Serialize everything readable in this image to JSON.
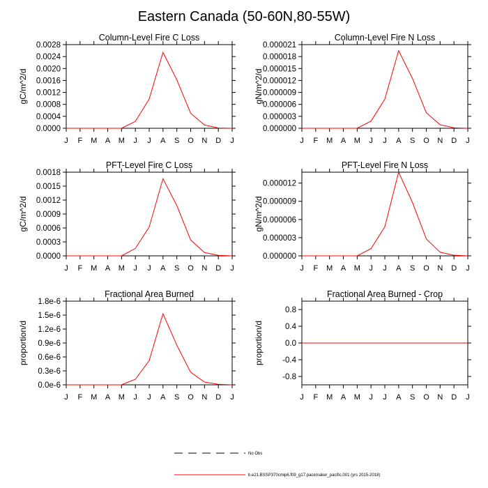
{
  "title": "Eastern Canada (50-60N,80-55W)",
  "colors": {
    "series": "#ff0000",
    "axis": "#000000"
  },
  "legend": {
    "entries": [
      {
        "label": "No Obs",
        "style": "dashed",
        "color": "#000000"
      },
      {
        "label": "b.e21.BSSP370cmip6.f09_g17.pacemaker_pacific.001 (yrs 2015-2018)",
        "style": "solid",
        "color": "#ff0000"
      }
    ]
  },
  "chart_data": [
    {
      "type": "line",
      "title": "Column-Level Fire C Loss",
      "xlabel": "",
      "ylabel": "gC/m^2/d",
      "categories": [
        "J",
        "F",
        "M",
        "A",
        "M",
        "J",
        "J",
        "A",
        "S",
        "O",
        "N",
        "D",
        "J"
      ],
      "ylim": [
        0,
        0.0028
      ],
      "yticks": [
        "0.0000",
        "0.0004",
        "0.0008",
        "0.0012",
        "0.0016",
        "0.0020",
        "0.0024",
        "0.0028"
      ],
      "series": [
        {
          "name": "b.e21.BSSP370cmip6.f09_g17.pacemaker_pacific.001 (yrs 2015-2018)",
          "values": [
            0,
            0,
            0,
            0,
            0,
            0.00023,
            0.00098,
            0.00254,
            0.00162,
            0.0005,
            0.00011,
            1e-05,
            0
          ]
        }
      ]
    },
    {
      "type": "line",
      "title": "Column-Level Fire N Loss",
      "xlabel": "",
      "ylabel": "gN/m^2/d",
      "categories": [
        "J",
        "F",
        "M",
        "A",
        "M",
        "J",
        "J",
        "A",
        "S",
        "O",
        "N",
        "D",
        "J"
      ],
      "ylim": [
        0,
        2.1e-05
      ],
      "yticks": [
        "0.000000",
        "0.000003",
        "0.000006",
        "0.000009",
        "0.000012",
        "0.000015",
        "0.000018",
        "0.000021"
      ],
      "series": [
        {
          "name": "b.e21.BSSP370cmip6.f09_g17.pacemaker_pacific.001 (yrs 2015-2018)",
          "values": [
            0,
            0,
            0,
            0,
            0,
            1.8e-06,
            7.3e-06,
            1.95e-05,
            1.25e-05,
            3.9e-06,
            9e-07,
            1e-07,
            0
          ]
        }
      ]
    },
    {
      "type": "line",
      "title": "PFT-Level Fire C Loss",
      "xlabel": "",
      "ylabel": "gC/m^2/d",
      "categories": [
        "J",
        "F",
        "M",
        "A",
        "M",
        "J",
        "J",
        "A",
        "S",
        "O",
        "N",
        "D",
        "J"
      ],
      "ylim": [
        0,
        0.0018
      ],
      "yticks": [
        "0.0000",
        "0.0003",
        "0.0006",
        "0.0009",
        "0.0012",
        "0.0015",
        "0.0018"
      ],
      "series": [
        {
          "name": "b.e21.BSSP370cmip6.f09_g17.pacemaker_pacific.001 (yrs 2015-2018)",
          "values": [
            0,
            0,
            0,
            0,
            0,
            0.00016,
            0.00062,
            0.00166,
            0.00108,
            0.00034,
            7e-05,
            1e-05,
            0
          ]
        }
      ]
    },
    {
      "type": "line",
      "title": "PFT-Level Fire N Loss",
      "xlabel": "",
      "ylabel": "gN/m^2/d",
      "categories": [
        "J",
        "F",
        "M",
        "A",
        "M",
        "J",
        "J",
        "A",
        "S",
        "O",
        "N",
        "D",
        "J"
      ],
      "ylim": [
        0,
        1.38e-05
      ],
      "yticks": [
        "0.000000",
        "0.000003",
        "0.000006",
        "0.000009",
        "0.000012"
      ],
      "ytickvalues": [
        0,
        3e-06,
        6e-06,
        9e-06,
        1.2e-05
      ],
      "series": [
        {
          "name": "b.e21.BSSP370cmip6.f09_g17.pacemaker_pacific.001 (yrs 2015-2018)",
          "values": [
            0,
            0,
            0,
            0,
            0,
            1.2e-06,
            4.8e-06,
            1.38e-05,
            8.8e-06,
            2.8e-06,
            6e-07,
            1e-07,
            0
          ]
        }
      ]
    },
    {
      "type": "line",
      "title": "Fractional Area Burned",
      "xlabel": "",
      "ylabel": "proportion/d",
      "categories": [
        "J",
        "F",
        "M",
        "A",
        "M",
        "J",
        "J",
        "A",
        "S",
        "O",
        "N",
        "D",
        "J"
      ],
      "ylim": [
        0,
        1.8e-06
      ],
      "yticks": [
        "0.0e-6",
        "0.3e-6",
        "0.6e-6",
        "0.9e-6",
        "1.2e-6",
        "1.5e-6",
        "1.8e-6"
      ],
      "series": [
        {
          "name": "b.e21.BSSP370cmip6.f09_g17.pacemaker_pacific.001 (yrs 2015-2018)",
          "values": [
            0,
            0,
            0,
            0,
            0,
            1.2e-07,
            5.2e-07,
            1.53e-06,
            8.5e-07,
            2.7e-07,
            6e-08,
            1e-08,
            0
          ]
        }
      ]
    },
    {
      "type": "line",
      "title": "Fractional Area Burned - Crop",
      "xlabel": "",
      "ylabel": "proportion/d",
      "categories": [
        "J",
        "F",
        "M",
        "A",
        "M",
        "J",
        "J",
        "A",
        "S",
        "O",
        "N",
        "D",
        "J"
      ],
      "ylim": [
        -1.0,
        1.0
      ],
      "yticks": [
        "-0.8",
        "-0.4",
        "0.0",
        "0.4",
        "0.8"
      ],
      "ytickvalues": [
        -0.8,
        -0.4,
        0.0,
        0.4,
        0.8
      ],
      "series": [
        {
          "name": "b.e21.BSSP370cmip6.f09_g17.pacemaker_pacific.001 (yrs 2015-2018)",
          "values": [
            0,
            0,
            0,
            0,
            0,
            0,
            0,
            0,
            0,
            0,
            0,
            0,
            0
          ]
        }
      ]
    }
  ]
}
